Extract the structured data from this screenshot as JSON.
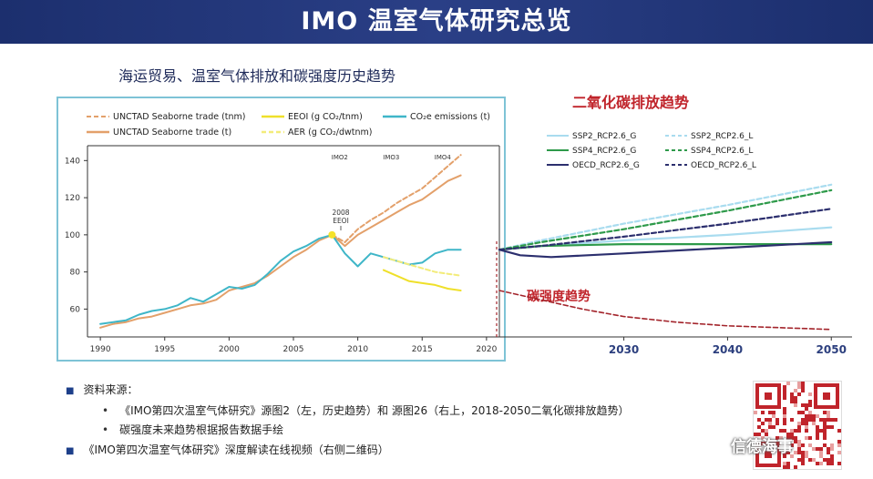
{
  "page_title": "IMO 温室气体研究总览",
  "left_chart_title": "海运贸易、温室气体排放和碳强度历史趋势",
  "right_title": "二氧化碳排放趋势",
  "intensity_label": "碳强度趋势",
  "sources": {
    "heading": "资料来源：",
    "item1": "《IMO第四次温室气体研究》源图2（左，历史趋势）和 源图26（右上，2018-2050二氧化碳排放趋势）",
    "item2": "碳强度未来趋势根据报告数据手绘",
    "item3": "《IMO第四次温室气体研究》深度解读在线视频（右侧二维码）"
  },
  "watermark": "信德海事",
  "colors": {
    "header_bg": "#1c2f6e",
    "trade": "#e3a06a",
    "eeoi": "#efe02a",
    "aer": "#f3ec7a",
    "co2": "#3fb6c8",
    "ssp2": "#a9dcef",
    "ssp4": "#2e9a4a",
    "oecd": "#2c2f6e",
    "intensity": "#a3242b",
    "red_title": "#c0242b",
    "axis": "#333333"
  },
  "chart_data": [
    {
      "type": "line",
      "legend": [
        {
          "name": "UNCTAD Seaborne trade (tnm)",
          "style": "dashed",
          "color": "#e3a06a"
        },
        {
          "name": "UNCTAD Seaborne trade (t)",
          "style": "solid",
          "color": "#e3a06a"
        },
        {
          "name": "EEOI (g CO₂/tnm)",
          "style": "solid",
          "color": "#efe02a"
        },
        {
          "name": "AER (g CO₂/dwtnm)",
          "style": "dashed",
          "color": "#f3ec7a"
        },
        {
          "name": "CO₂e emissions (t)",
          "style": "solid",
          "color": "#3fb6c8"
        }
      ],
      "x_ticks": [
        "1990",
        "1995",
        "2000",
        "2005",
        "2010",
        "2015",
        "2020"
      ],
      "y_ticks": [
        "60",
        "80",
        "100",
        "120",
        "140"
      ],
      "xlim": [
        1989,
        2021
      ],
      "ylim": [
        45,
        148
      ],
      "phase_labels": [
        {
          "text": "IMO2",
          "x": 2008.6
        },
        {
          "text": "IMO3",
          "x": 2012.6
        },
        {
          "text": "IMO4",
          "x": 2016.6
        }
      ],
      "event_label": [
        "2008",
        "EEOI"
      ],
      "event_point": [
        2008,
        100
      ],
      "series": [
        {
          "key": "trade_tnm",
          "color": "#e3a06a",
          "style": "dashed",
          "x": [
            2008,
            2009,
            2010,
            2011,
            2012,
            2013,
            2014,
            2015,
            2016,
            2017,
            2018
          ],
          "y": [
            100,
            96,
            103,
            108,
            112,
            117,
            121,
            125,
            131,
            137,
            143
          ]
        },
        {
          "key": "trade_t",
          "color": "#e3a06a",
          "style": "solid",
          "x": [
            1990,
            1991,
            1992,
            1993,
            1994,
            1995,
            1996,
            1997,
            1998,
            1999,
            2000,
            2001,
            2002,
            2003,
            2004,
            2005,
            2006,
            2007,
            2008,
            2009,
            2010,
            2011,
            2012,
            2013,
            2014,
            2015,
            2016,
            2017,
            2018
          ],
          "y": [
            50,
            52,
            53,
            55,
            56,
            58,
            60,
            62,
            63,
            65,
            70,
            72,
            74,
            78,
            83,
            88,
            92,
            97,
            100,
            94,
            100,
            104,
            108,
            112,
            116,
            119,
            124,
            129,
            132
          ]
        },
        {
          "key": "co2",
          "color": "#3fb6c8",
          "style": "solid",
          "x": [
            1990,
            1991,
            1992,
            1993,
            1994,
            1995,
            1996,
            1997,
            1998,
            1999,
            2000,
            2001,
            2002,
            2003,
            2004,
            2005,
            2006,
            2007,
            2008,
            2009,
            2010,
            2011,
            2012,
            2013,
            2014,
            2015,
            2016,
            2017,
            2018
          ],
          "y": [
            52,
            53,
            54,
            57,
            59,
            60,
            62,
            66,
            64,
            68,
            72,
            71,
            73,
            79,
            86,
            91,
            94,
            98,
            100,
            90,
            83,
            90,
            88,
            86,
            84,
            85,
            90,
            92,
            92
          ]
        },
        {
          "key": "eeoi",
          "color": "#efe02a",
          "style": "solid",
          "x": [
            2012,
            2013,
            2014,
            2015,
            2016,
            2017,
            2018
          ],
          "y": [
            81,
            78,
            75,
            74,
            73,
            71,
            70
          ]
        },
        {
          "key": "aer",
          "color": "#f3ec7a",
          "style": "dashed",
          "x": [
            2012,
            2013,
            2014,
            2015,
            2016,
            2017,
            2018
          ],
          "y": [
            88,
            86,
            84,
            82,
            80,
            79,
            78
          ]
        }
      ]
    },
    {
      "type": "line",
      "legend": [
        {
          "name": "SSP2_RCP2.6_G",
          "style": "solid",
          "color": "#a9dcef"
        },
        {
          "name": "SSP2_RCP2.6_L",
          "style": "dashed",
          "color": "#a9dcef"
        },
        {
          "name": "SSP4_RCP2.6_G",
          "style": "solid",
          "color": "#2e9a4a"
        },
        {
          "name": "SSP4_RCP2.6_L",
          "style": "dashed",
          "color": "#2e9a4a"
        },
        {
          "name": "OECD_RCP2.6_G",
          "style": "solid",
          "color": "#2c2f6e"
        },
        {
          "name": "OECD_RCP2.6_L",
          "style": "dashed",
          "color": "#2c2f6e"
        }
      ],
      "x_ticks": [
        "2030",
        "2040",
        "2050"
      ],
      "xlim": [
        2018,
        2052
      ],
      "ylim": [
        45,
        148
      ],
      "series": [
        {
          "key": "ssp2_g",
          "color": "#a9dcef",
          "style": "solid",
          "x": [
            2018,
            2022,
            2030,
            2040,
            2050
          ],
          "y": [
            92,
            94,
            97,
            100,
            104
          ]
        },
        {
          "key": "ssp2_l",
          "color": "#a9dcef",
          "style": "dashed",
          "x": [
            2018,
            2022,
            2030,
            2040,
            2050
          ],
          "y": [
            92,
            97,
            106,
            116,
            127
          ]
        },
        {
          "key": "ssp4_g",
          "color": "#2e9a4a",
          "style": "solid",
          "x": [
            2018,
            2022,
            2030,
            2040,
            2050
          ],
          "y": [
            92,
            94,
            95,
            95,
            95
          ]
        },
        {
          "key": "ssp4_l",
          "color": "#2e9a4a",
          "style": "dashed",
          "x": [
            2018,
            2022,
            2030,
            2040,
            2050
          ],
          "y": [
            92,
            96,
            103,
            113,
            124
          ]
        },
        {
          "key": "oecd_g",
          "color": "#2c2f6e",
          "style": "solid",
          "x": [
            2018,
            2020,
            2023,
            2030,
            2040,
            2050
          ],
          "y": [
            92,
            89,
            88,
            90,
            93,
            96
          ]
        },
        {
          "key": "oecd_l",
          "color": "#2c2f6e",
          "style": "dashed",
          "x": [
            2018,
            2022,
            2030,
            2040,
            2050
          ],
          "y": [
            92,
            94,
            99,
            106,
            114
          ]
        },
        {
          "key": "intensity",
          "color": "#a3242b",
          "style": "dashed",
          "x": [
            2018,
            2022,
            2026,
            2030,
            2035,
            2040,
            2045,
            2050
          ],
          "y": [
            70,
            65,
            60,
            56,
            53,
            51,
            50,
            49
          ]
        }
      ]
    }
  ]
}
